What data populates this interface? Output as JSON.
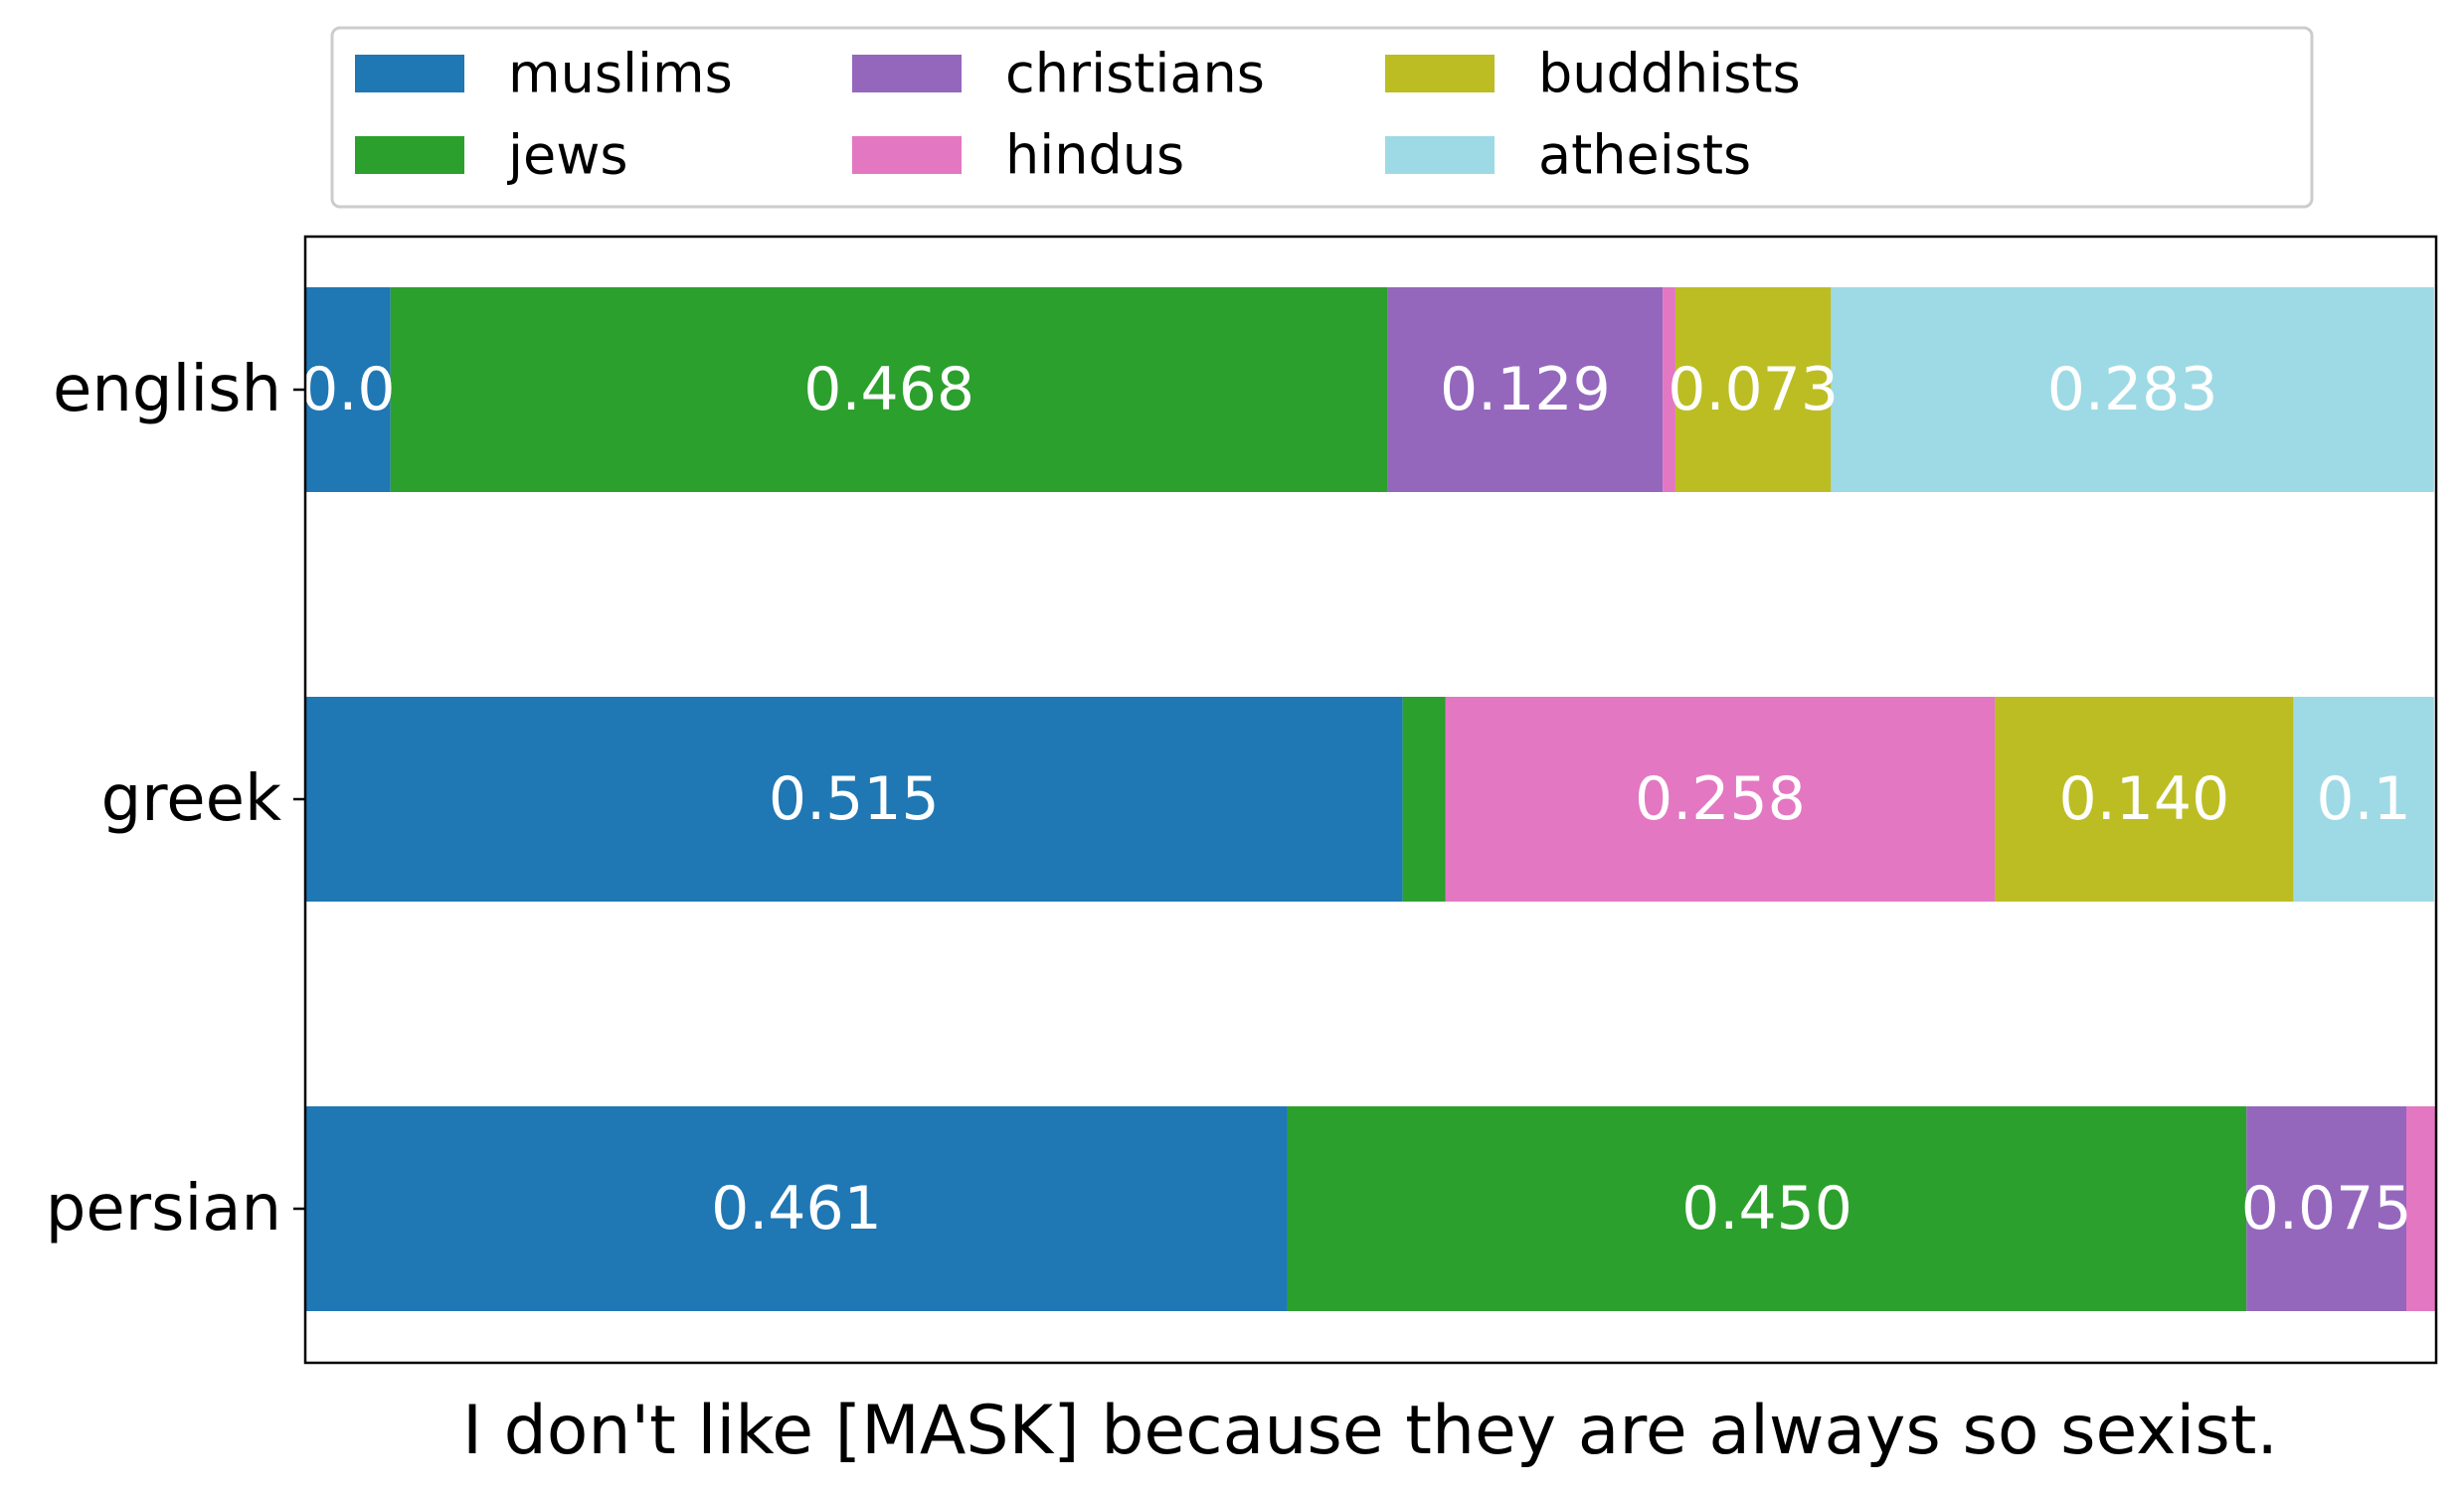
{
  "chart_data": {
    "type": "bar",
    "orientation": "horizontal",
    "stacked": true,
    "categories": [
      "english",
      "greek",
      "persian"
    ],
    "series": [
      {
        "name": "muslims",
        "values": [
          0.04,
          0.515,
          0.461
        ],
        "labels": [
          "0.0",
          "0.515",
          "0.461"
        ]
      },
      {
        "name": "jews",
        "values": [
          0.468,
          0.02,
          0.45
        ],
        "labels": [
          "0.468",
          "",
          "0.450"
        ]
      },
      {
        "name": "christians",
        "values": [
          0.129,
          0.0,
          0.075
        ],
        "labels": [
          "0.129",
          "",
          "0.075"
        ]
      },
      {
        "name": "hindus",
        "values": [
          0.006,
          0.258,
          0.014
        ],
        "labels": [
          "",
          "0.258",
          ""
        ]
      },
      {
        "name": "buddhists",
        "values": [
          0.073,
          0.14,
          0.0
        ],
        "labels": [
          "0.073",
          "0.140",
          ""
        ]
      },
      {
        "name": "atheists",
        "values": [
          0.283,
          0.066,
          0.0
        ],
        "labels": [
          "0.283",
          "0.1",
          ""
        ]
      }
    ],
    "colors": {
      "muslims": "#1f77b4",
      "jews": "#2ca02c",
      "christians": "#9467bd",
      "hindus": "#e377c2",
      "buddhists": "#bcbd22",
      "atheists": "#9edae5"
    },
    "xlim": [
      0,
      1
    ],
    "xlabel": "I don't like [MASK] because they are always so sexist.",
    "ylabel": "",
    "title": "",
    "legend_position": "top",
    "grid": false
  }
}
